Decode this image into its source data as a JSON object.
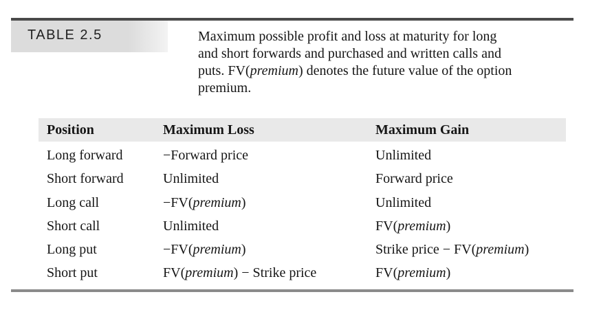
{
  "table_label": "TABLE 2.5",
  "caption": {
    "line1": "Maximum possible profit and loss at maturity for long",
    "line2": "and short forwards and purchased and written calls and",
    "line3_prefix": "puts. FV(",
    "line3_italic": "premium",
    "line3_suffix": ") denotes the future value of the option",
    "line4": "premium."
  },
  "headers": {
    "position": "Position",
    "max_loss": "Maximum Loss",
    "max_gain": "Maximum Gain"
  },
  "rows": [
    {
      "position": "Long forward",
      "loss": {
        "pre": "−Forward price",
        "it": "",
        "post": ""
      },
      "gain": {
        "pre": "Unlimited",
        "it": "",
        "post": ""
      }
    },
    {
      "position": "Short forward",
      "loss": {
        "pre": "Unlimited",
        "it": "",
        "post": ""
      },
      "gain": {
        "pre": "Forward price",
        "it": "",
        "post": ""
      }
    },
    {
      "position": "Long call",
      "loss": {
        "pre": "−FV(",
        "it": "premium",
        "post": ")"
      },
      "gain": {
        "pre": "Unlimited",
        "it": "",
        "post": ""
      }
    },
    {
      "position": "Short call",
      "loss": {
        "pre": "Unlimited",
        "it": "",
        "post": ""
      },
      "gain": {
        "pre": "FV(",
        "it": "premium",
        "post": ")"
      }
    },
    {
      "position": "Long put",
      "loss": {
        "pre": "−FV(",
        "it": "premium",
        "post": ")"
      },
      "gain": {
        "pre": "Strike price − FV(",
        "it": "premium",
        "post": ")"
      }
    },
    {
      "position": "Short put",
      "loss": {
        "pre": "FV(",
        "it": "premium",
        "post": ") − Strike price"
      },
      "gain": {
        "pre": "FV(",
        "it": "premium",
        "post": ")"
      }
    }
  ]
}
